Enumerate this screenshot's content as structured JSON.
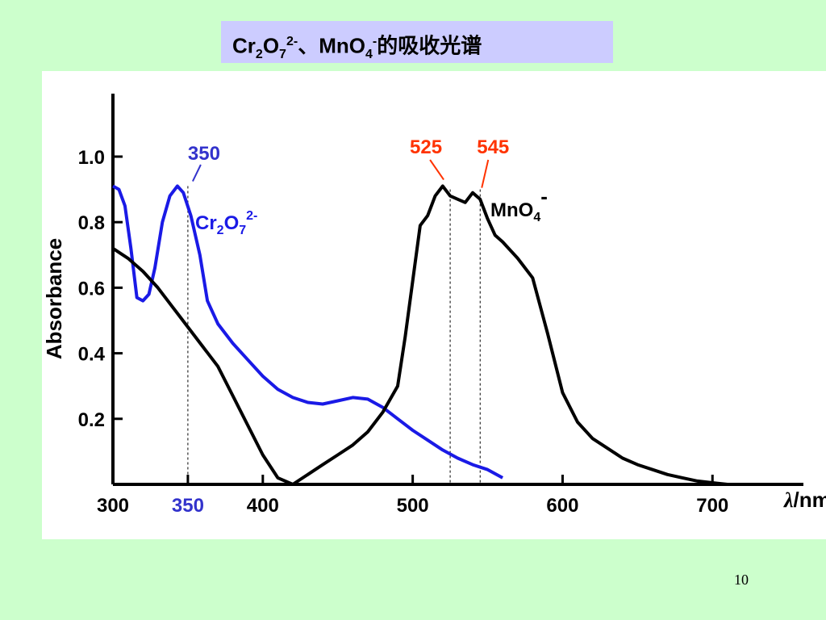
{
  "title": {
    "part1": "Cr",
    "sub1": "2",
    "part2": "O",
    "sub2": "7",
    "sup1": "2-",
    "sep": "、MnO",
    "sub3": "4",
    "sup2": "-",
    "tail": "的吸收光谱"
  },
  "page_number": "10",
  "colors": {
    "black_curve": "#000000",
    "blue_curve": "#1a1ae6",
    "peak_label_red": "#ff3300",
    "peak_label_blue": "#3333cc"
  },
  "chart_data": {
    "type": "line",
    "xlabel": "λ/nm",
    "ylabel": "Absorbance",
    "xlim": [
      300,
      710
    ],
    "ylim": [
      0,
      1.2
    ],
    "x_ticks": [
      300,
      350,
      400,
      500,
      600,
      700
    ],
    "x_tick_labels": [
      "300",
      "350",
      "400",
      "500",
      "600",
      "700"
    ],
    "y_ticks": [
      0.2,
      0.4,
      0.6,
      0.8,
      1.0
    ],
    "y_tick_labels": [
      "0.2",
      "0.4",
      "0.6",
      "0.8",
      "1.0"
    ],
    "series": [
      {
        "name": "Cr2O7 2-",
        "color": "#1a1ae6",
        "x": [
          300,
          304,
          308,
          312,
          316,
          320,
          324,
          328,
          333,
          338,
          343,
          347,
          352,
          358,
          363,
          370,
          380,
          390,
          400,
          410,
          420,
          430,
          440,
          450,
          460,
          470,
          480,
          490,
          500,
          510,
          520,
          530,
          540,
          550,
          560
        ],
        "y": [
          0.91,
          0.9,
          0.85,
          0.72,
          0.57,
          0.56,
          0.58,
          0.66,
          0.8,
          0.88,
          0.91,
          0.89,
          0.82,
          0.7,
          0.56,
          0.49,
          0.43,
          0.38,
          0.33,
          0.29,
          0.265,
          0.25,
          0.245,
          0.255,
          0.265,
          0.26,
          0.235,
          0.2,
          0.165,
          0.135,
          0.105,
          0.08,
          0.06,
          0.045,
          0.02
        ]
      },
      {
        "name": "MnO4 -",
        "color": "#000000",
        "x": [
          300,
          310,
          320,
          330,
          340,
          350,
          360,
          370,
          380,
          390,
          400,
          410,
          420,
          430,
          440,
          450,
          460,
          470,
          480,
          490,
          495,
          500,
          505,
          510,
          515,
          520,
          525,
          530,
          535,
          540,
          545,
          550,
          555,
          560,
          570,
          580,
          590,
          600,
          610,
          620,
          630,
          640,
          650,
          660,
          670,
          680,
          690,
          700,
          710
        ],
        "y": [
          0.72,
          0.69,
          0.65,
          0.6,
          0.54,
          0.48,
          0.42,
          0.36,
          0.27,
          0.18,
          0.09,
          0.02,
          0.0,
          0.03,
          0.06,
          0.09,
          0.12,
          0.16,
          0.22,
          0.3,
          0.45,
          0.62,
          0.79,
          0.82,
          0.88,
          0.91,
          0.88,
          0.87,
          0.86,
          0.89,
          0.87,
          0.81,
          0.76,
          0.74,
          0.69,
          0.63,
          0.46,
          0.28,
          0.19,
          0.14,
          0.11,
          0.08,
          0.06,
          0.045,
          0.03,
          0.02,
          0.01,
          0.005,
          0.0
        ]
      }
    ],
    "annotations": [
      {
        "text": "350",
        "color": "#3333cc",
        "x": 350,
        "y": 0.91
      },
      {
        "text": "525",
        "color": "#ff3300",
        "x": 525,
        "y": 0.91
      },
      {
        "text": "545",
        "color": "#ff3300",
        "x": 545,
        "y": 0.89
      }
    ],
    "series_labels": [
      {
        "base": "Cr",
        "s1": "2",
        "mid": "O",
        "s2": "7",
        "sup": "2-",
        "color": "#1a1ae6"
      },
      {
        "base": "MnO",
        "s1": "4",
        "sup": "-",
        "color": "#000000"
      }
    ],
    "dashed_lines_x": [
      350,
      525,
      545
    ],
    "x_tick_350_color": "#3333cc"
  }
}
